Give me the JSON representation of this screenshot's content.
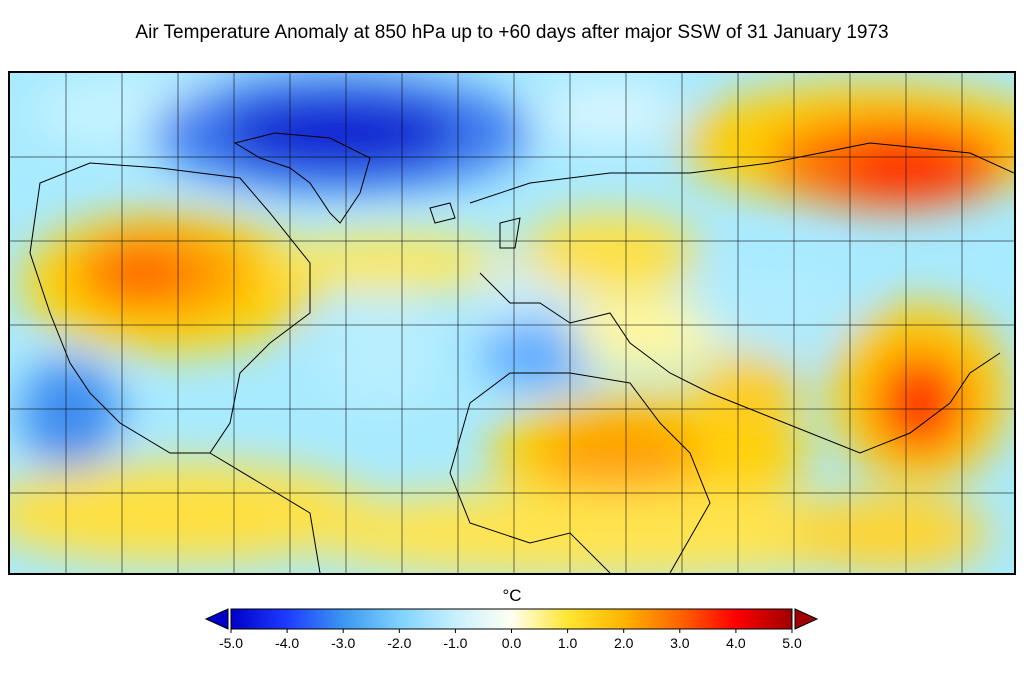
{
  "title": "Air Temperature Anomaly at 850 hPa up to +60 days after major SSW of 31 January 1973",
  "colorbar": {
    "unit": "°C",
    "ticks": [
      "-5.0",
      "-4.0",
      "-3.0",
      "-2.0",
      "-1.0",
      "0.0",
      "1.0",
      "2.0",
      "3.0",
      "4.0",
      "5.0"
    ],
    "range": [
      -5,
      5
    ],
    "extend": "both",
    "colors": [
      "#0000c8",
      "#1e3cff",
      "#3c96f0",
      "#7fd2ff",
      "#c8f0ff",
      "#fffff0",
      "#ffe632",
      "#ffb400",
      "#ff6400",
      "#ff0000",
      "#a00000"
    ]
  }
}
